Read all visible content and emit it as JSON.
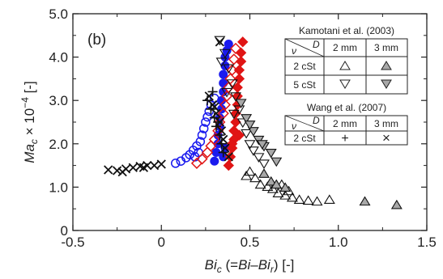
{
  "chart_data": {
    "type": "scatter",
    "panel_label": "(b)",
    "xlabel": {
      "main": "Bi",
      "sub": "c",
      "paren": "(=",
      "bi": "Bi",
      "minus": "–",
      "bir": "Bi",
      "rsub": "r",
      "close": ")",
      "unit": "[-]"
    },
    "ylabel": {
      "ma": "Ma",
      "sub": "c",
      "times": " × 10",
      "exp": "−4",
      "unit": " [-]"
    },
    "xlim": [
      -0.5,
      1.5
    ],
    "ylim": [
      0,
      5.0
    ],
    "xticks": [
      "-0.5",
      "0",
      "0.5",
      "1.0",
      "1.5"
    ],
    "xtick_values": [
      -0.5,
      0,
      0.5,
      1.0,
      1.5
    ],
    "yticks": [
      "0",
      "1.0",
      "2.0",
      "3.0",
      "4.0",
      "5.0"
    ],
    "ytick_values": [
      0,
      1.0,
      2.0,
      3.0,
      4.0,
      5.0
    ],
    "colors": {
      "blue": "#1a1aee",
      "red": "#e01515",
      "black": "#111111",
      "gray_fill": "#a8a8a8"
    },
    "legend": {
      "kamotani_title": "Kamotani et al. (2003)",
      "wang_title": "Wang et al. (2007)",
      "nu_symbol": "ν",
      "d_symbol": "D",
      "col_2mm": "2 mm",
      "col_3mm": "3 mm",
      "row_2cst": "2 cSt",
      "row_5cst": "5 cSt",
      "plus": "+",
      "cross": "×"
    },
    "series": [
      {
        "marker": "circle-open-blue",
        "points": [
          [
            0.08,
            1.55
          ],
          [
            0.11,
            1.6
          ],
          [
            0.14,
            1.68
          ],
          [
            0.16,
            1.75
          ],
          [
            0.18,
            1.85
          ],
          [
            0.2,
            1.95
          ],
          [
            0.22,
            2.05
          ],
          [
            0.23,
            2.2
          ],
          [
            0.24,
            2.35
          ],
          [
            0.25,
            2.5
          ],
          [
            0.26,
            2.62
          ],
          [
            0.27,
            2.75
          ],
          [
            0.28,
            2.9
          ],
          [
            0.3,
            3.05
          ],
          [
            0.19,
            1.7
          ],
          [
            0.21,
            1.8
          ]
        ]
      },
      {
        "marker": "circle-filled-blue",
        "points": [
          [
            0.3,
            1.6
          ],
          [
            0.31,
            1.8
          ],
          [
            0.32,
            2.0
          ],
          [
            0.32,
            2.2
          ],
          [
            0.33,
            2.4
          ],
          [
            0.33,
            2.6
          ],
          [
            0.34,
            2.8
          ],
          [
            0.34,
            3.0
          ],
          [
            0.35,
            3.2
          ],
          [
            0.35,
            3.4
          ],
          [
            0.35,
            3.6
          ],
          [
            0.36,
            3.8
          ],
          [
            0.36,
            4.0
          ],
          [
            0.37,
            4.15
          ],
          [
            0.38,
            4.3
          ],
          [
            0.35,
            1.7
          ],
          [
            0.36,
            1.9
          ]
        ]
      },
      {
        "marker": "diamond-open-red",
        "points": [
          [
            0.2,
            1.55
          ],
          [
            0.23,
            1.65
          ],
          [
            0.26,
            1.8
          ],
          [
            0.28,
            1.95
          ],
          [
            0.3,
            2.1
          ],
          [
            0.32,
            2.3
          ],
          [
            0.33,
            2.5
          ],
          [
            0.35,
            2.7
          ],
          [
            0.36,
            2.9
          ],
          [
            0.37,
            3.1
          ],
          [
            0.38,
            3.3
          ],
          [
            0.39,
            3.5
          ],
          [
            0.4,
            3.7
          ],
          [
            0.41,
            3.95
          ],
          [
            0.42,
            4.2
          ]
        ]
      },
      {
        "marker": "diamond-filled-red",
        "points": [
          [
            0.38,
            1.5
          ],
          [
            0.39,
            1.7
          ],
          [
            0.4,
            1.9
          ],
          [
            0.41,
            2.1
          ],
          [
            0.41,
            2.3
          ],
          [
            0.42,
            2.5
          ],
          [
            0.42,
            2.7
          ],
          [
            0.43,
            2.9
          ],
          [
            0.43,
            3.1
          ],
          [
            0.43,
            3.3
          ],
          [
            0.44,
            3.5
          ],
          [
            0.44,
            3.7
          ],
          [
            0.45,
            3.9
          ],
          [
            0.45,
            4.1
          ],
          [
            0.46,
            4.35
          ],
          [
            0.4,
            2.0
          ],
          [
            0.44,
            2.2
          ]
        ]
      },
      {
        "marker": "triangle-open-down",
        "points": [
          [
            0.33,
            4.4
          ],
          [
            0.36,
            4.1
          ],
          [
            0.38,
            3.75
          ],
          [
            0.4,
            3.4
          ],
          [
            0.42,
            3.1
          ],
          [
            0.44,
            2.8
          ],
          [
            0.46,
            2.5
          ],
          [
            0.48,
            2.25
          ],
          [
            0.5,
            2.0
          ],
          [
            0.52,
            1.85
          ],
          [
            0.55,
            1.7
          ],
          [
            0.58,
            1.55
          ],
          [
            0.34,
            3.9
          ],
          [
            0.37,
            3.2
          ],
          [
            0.41,
            2.7
          ]
        ]
      },
      {
        "marker": "triangle-filled-down",
        "points": [
          [
            0.45,
            2.95
          ],
          [
            0.48,
            2.6
          ],
          [
            0.52,
            2.3
          ],
          [
            0.55,
            2.1
          ],
          [
            0.58,
            1.95
          ],
          [
            0.62,
            1.8
          ],
          [
            0.65,
            1.6
          ],
          [
            0.5,
            2.45
          ],
          [
            0.57,
            2.0
          ]
        ]
      },
      {
        "marker": "triangle-open-up",
        "points": [
          [
            0.48,
            1.25
          ],
          [
            0.5,
            1.35
          ],
          [
            0.53,
            1.2
          ],
          [
            0.56,
            1.05
          ],
          [
            0.6,
            1.0
          ],
          [
            0.63,
            0.95
          ],
          [
            0.66,
            0.85
          ],
          [
            0.7,
            0.8
          ],
          [
            0.74,
            0.75
          ],
          [
            0.78,
            0.7
          ],
          [
            0.83,
            0.68
          ],
          [
            0.88,
            0.66
          ],
          [
            0.95,
            0.7
          ],
          [
            0.68,
            1.05
          ],
          [
            0.72,
            0.9
          ]
        ]
      },
      {
        "marker": "triangle-filled-up",
        "points": [
          [
            0.58,
            1.3
          ],
          [
            0.62,
            1.12
          ],
          [
            0.65,
            1.05
          ],
          [
            0.7,
            0.98
          ],
          [
            1.15,
            0.66
          ],
          [
            1.33,
            0.58
          ]
        ]
      },
      {
        "marker": "plus",
        "points": [
          [
            0.26,
            3.0
          ],
          [
            0.28,
            2.8
          ],
          [
            0.3,
            2.6
          ],
          [
            0.31,
            2.4
          ],
          [
            0.33,
            2.2
          ],
          [
            0.34,
            2.0
          ],
          [
            0.35,
            1.8
          ],
          [
            0.29,
            3.2
          ],
          [
            0.32,
            2.5
          ]
        ]
      },
      {
        "marker": "cross",
        "points": [
          [
            -0.3,
            1.4
          ],
          [
            -0.25,
            1.38
          ],
          [
            -0.2,
            1.42
          ],
          [
            -0.16,
            1.45
          ],
          [
            -0.12,
            1.48
          ],
          [
            -0.08,
            1.5
          ],
          [
            -0.04,
            1.5
          ],
          [
            0.0,
            1.53
          ],
          [
            -0.22,
            1.35
          ],
          [
            -0.1,
            1.45
          ],
          [
            0.27,
            3.1
          ],
          [
            0.29,
            2.9
          ],
          [
            0.31,
            2.7
          ],
          [
            0.33,
            2.5
          ],
          [
            0.34,
            2.3
          ],
          [
            0.35,
            2.1
          ],
          [
            0.36,
            1.9
          ],
          [
            0.38,
            1.7
          ],
          [
            0.3,
            2.85
          ],
          [
            0.33,
            4.35
          ]
        ]
      }
    ]
  }
}
